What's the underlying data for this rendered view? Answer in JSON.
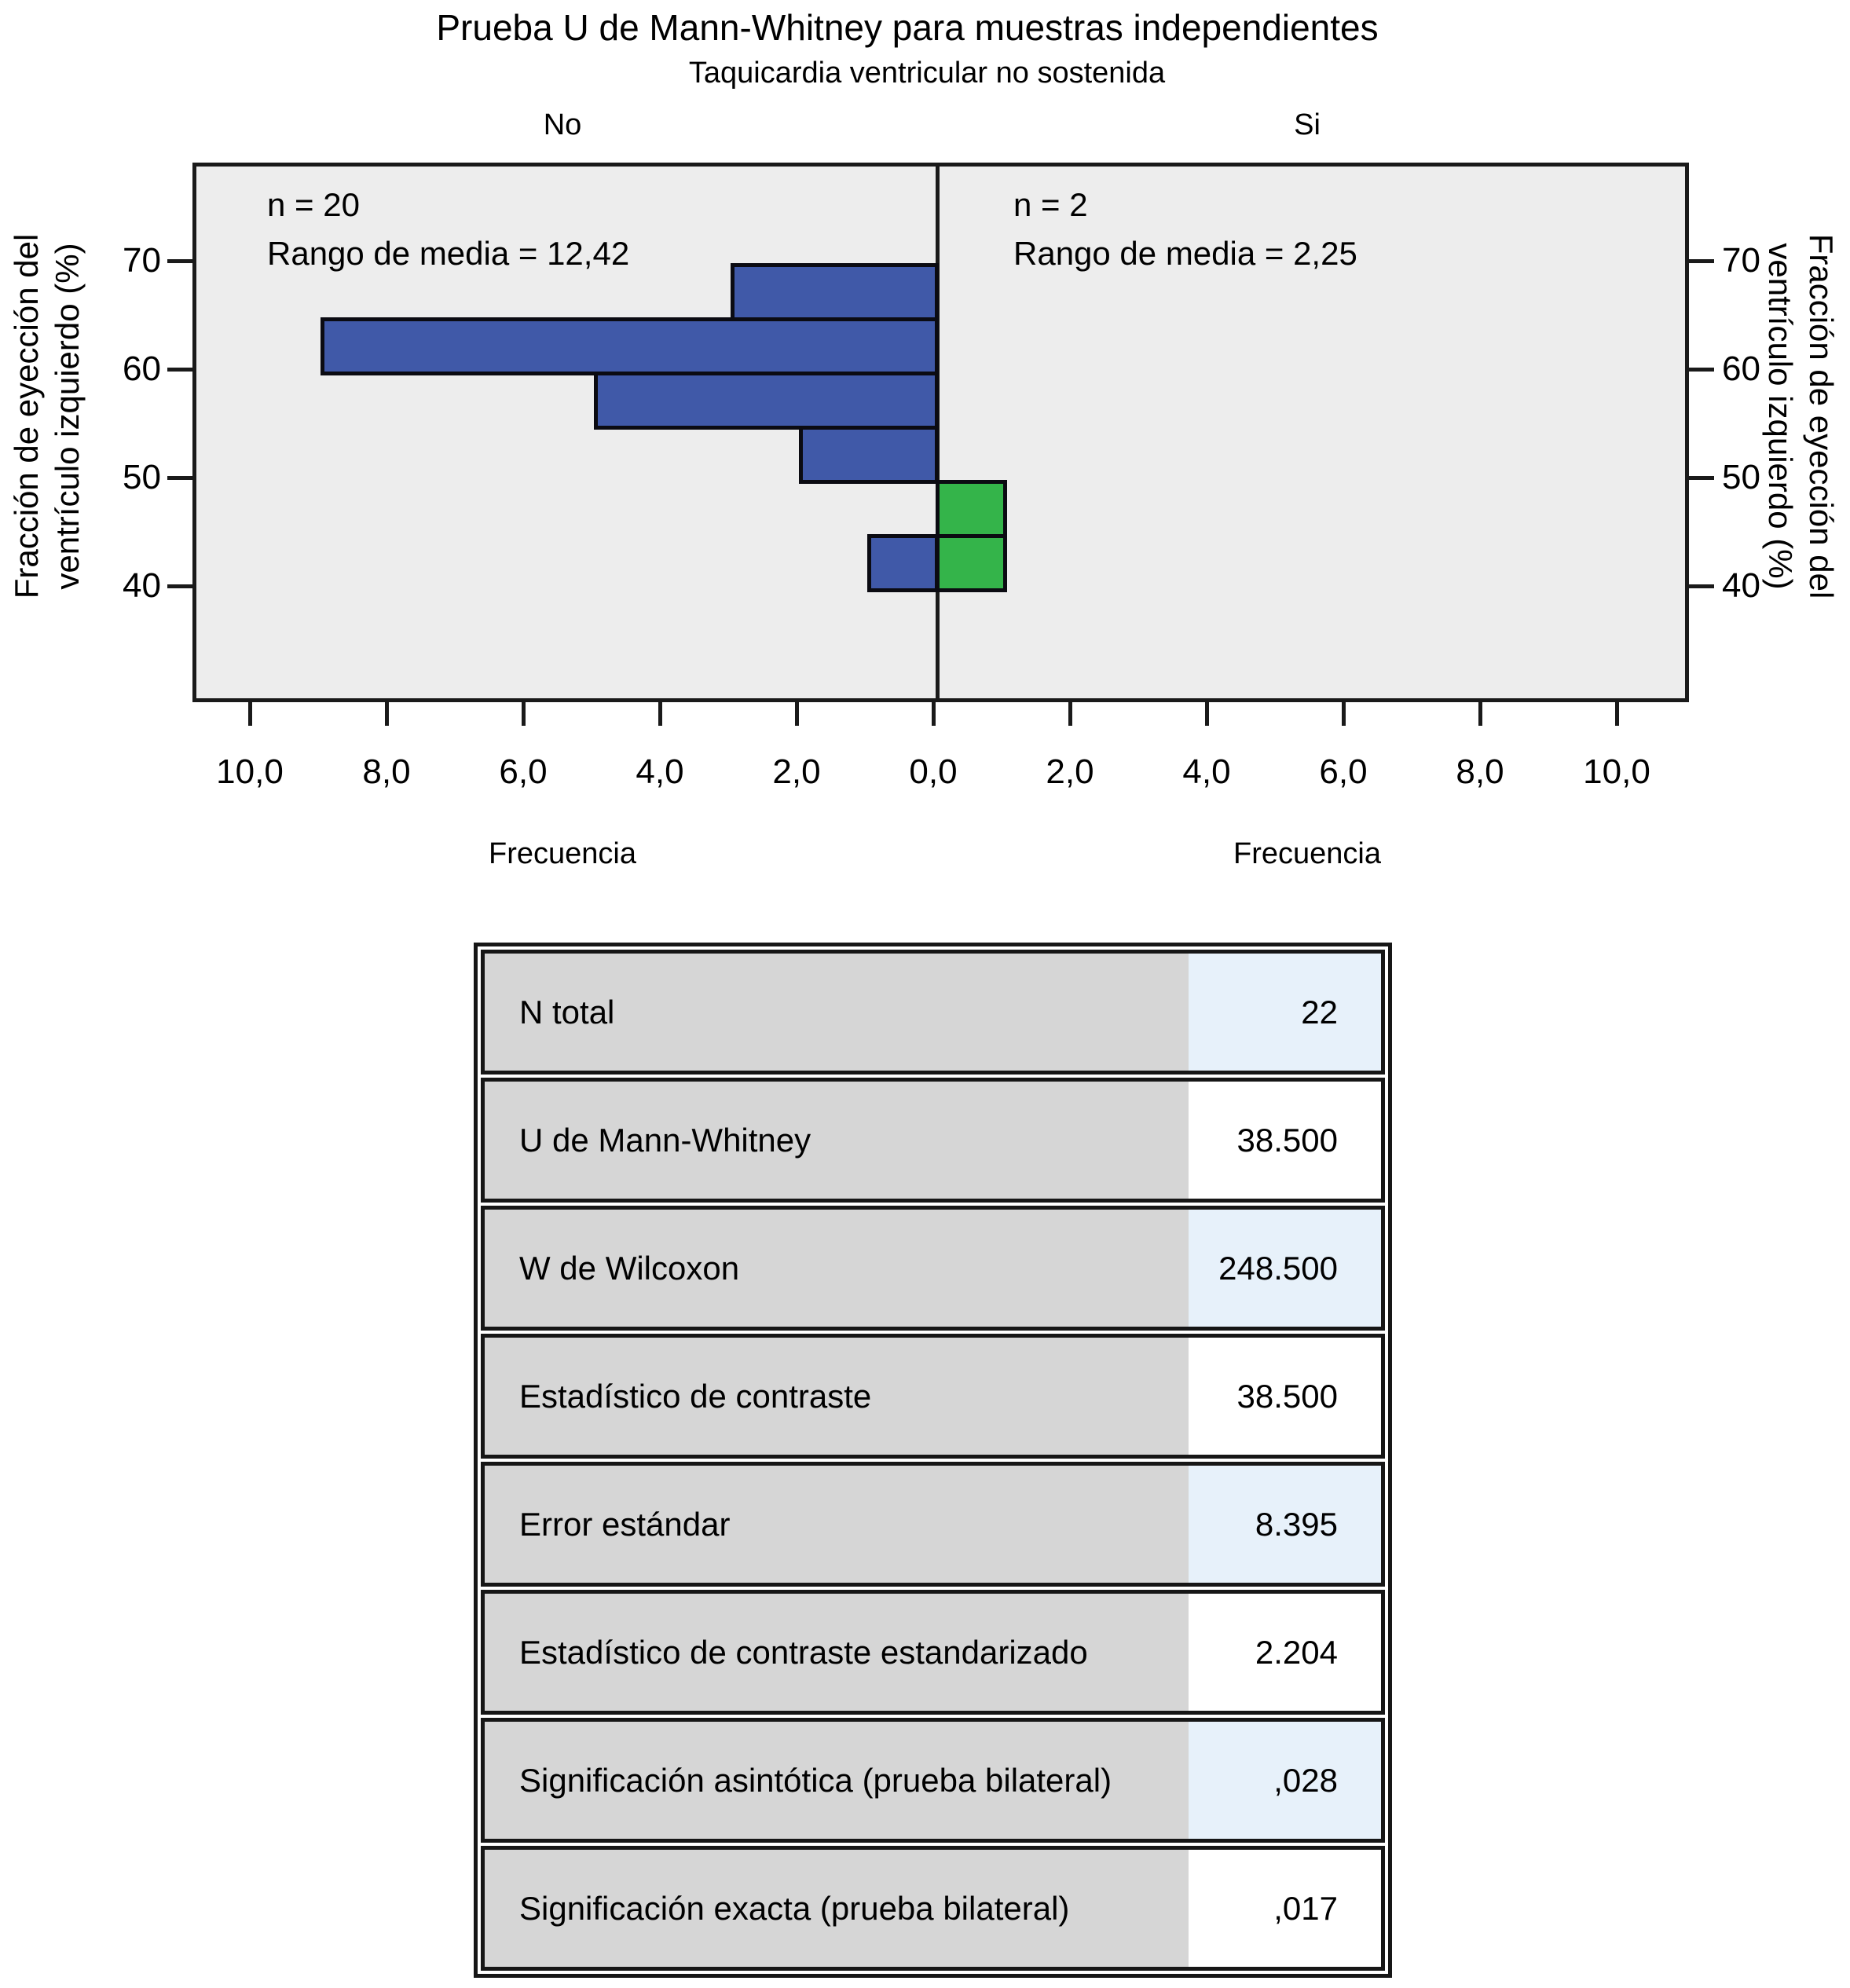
{
  "title": "Prueba U de Mann-Whitney para muestras independientes",
  "subtitle": "Taquicardia ventricular no sostenida",
  "chart_data": {
    "type": "bar",
    "variant": "population-pyramid-histogram",
    "title": "Prueba U de Mann-Whitney para muestras independientes",
    "subtitle": "Taquicardia ventricular no sostenida",
    "xlabel_left": "Frecuencia",
    "xlabel_right": "Frecuencia",
    "ylabel_lines": [
      "Fracción de eyección del",
      "ventrículo izquierdo (%)"
    ],
    "bin_width": 5,
    "y_axis_range": [
      30,
      79
    ],
    "x_axis_range_per_side": [
      0,
      11
    ],
    "grid": false,
    "y_ticks": [
      {
        "v": 70,
        "label": "70"
      },
      {
        "v": 60,
        "label": "60"
      },
      {
        "v": 50,
        "label": "50"
      },
      {
        "v": 40,
        "label": "40"
      }
    ],
    "x_ticks": [
      {
        "u": -10,
        "label": "10,0"
      },
      {
        "u": -8,
        "label": "8,0"
      },
      {
        "u": -6,
        "label": "6,0"
      },
      {
        "u": -4,
        "label": "4,0"
      },
      {
        "u": -2,
        "label": "2,0"
      },
      {
        "u": 0,
        "label": "0,0"
      },
      {
        "u": 2,
        "label": "2,0"
      },
      {
        "u": 4,
        "label": "4,0"
      },
      {
        "u": 6,
        "label": "6,0"
      },
      {
        "u": 8,
        "label": "8,0"
      },
      {
        "u": 10,
        "label": "10,0"
      }
    ],
    "panels": [
      {
        "label": "No",
        "side": "left",
        "n": 20,
        "mean_rank": "12,42",
        "n_label": "n = 20",
        "mean_rank_label": "Rango de media = 12,42",
        "bar_color": "#4059a8",
        "bins": [
          {
            "from": 65,
            "to": 70,
            "count": 3
          },
          {
            "from": 60,
            "to": 65,
            "count": 9
          },
          {
            "from": 55,
            "to": 60,
            "count": 5
          },
          {
            "from": 50,
            "to": 55,
            "count": 2
          },
          {
            "from": 40,
            "to": 45,
            "count": 1
          }
        ]
      },
      {
        "label": "Si",
        "side": "right",
        "n": 2,
        "mean_rank": "2,25",
        "n_label": "n = 2",
        "mean_rank_label": "Rango de media = 2,25",
        "bar_color": "#34b44a",
        "bins": [
          {
            "from": 45,
            "to": 50,
            "count": 1
          },
          {
            "from": 40,
            "to": 45,
            "count": 1
          }
        ]
      }
    ],
    "colors": {
      "panel_background": "#ededed",
      "bar_border": "#0b0b12",
      "axis": "#1a1a1a",
      "bar_blue": "#4059a8",
      "bar_green": "#34b44a"
    }
  },
  "table": {
    "colors": {
      "label_cell": "#d6d6d6",
      "value_cell_shaded": "#e7f1fa",
      "value_cell_plain": "#ffffff",
      "border": "#161616"
    },
    "rows": [
      {
        "label": "N total",
        "value": "22",
        "shaded": true
      },
      {
        "label": "U de Mann-Whitney",
        "value": "38.500",
        "shaded": false
      },
      {
        "label": "W de Wilcoxon",
        "value": "248.500",
        "shaded": true
      },
      {
        "label": "Estadístico de contraste",
        "value": "38.500",
        "shaded": false
      },
      {
        "label": "Error estándar",
        "value": "8.395",
        "shaded": true
      },
      {
        "label": "Estadístico de contraste estandarizado",
        "value": "2.204",
        "shaded": false
      },
      {
        "label": "Significación asintótica (prueba bilateral)",
        "value": ",028",
        "shaded": true
      },
      {
        "label": "Significación exacta (prueba bilateral)",
        "value": ",017",
        "shaded": false
      }
    ]
  }
}
